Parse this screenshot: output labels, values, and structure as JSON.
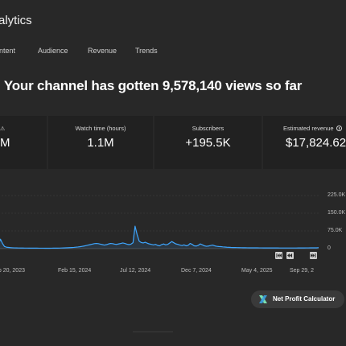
{
  "app": {
    "title": "alytics"
  },
  "tabs": [
    {
      "label": "ontent"
    },
    {
      "label": "Audience"
    },
    {
      "label": "Revenue"
    },
    {
      "label": "Trends"
    }
  ],
  "headline": "Your channel has gotten 9,578,140 views so far",
  "metrics": {
    "views": {
      "label": "",
      "value": "M",
      "icon": "warning-icon"
    },
    "watch_time": {
      "label": "Watch time (hours)",
      "value": "1.1M"
    },
    "subscribers": {
      "label": "Subscribers",
      "value": "+195.5K"
    },
    "revenue": {
      "label": "Estimated revenue",
      "value": "$17,824.62",
      "icon": "info-icon"
    }
  },
  "chart_data": {
    "type": "line",
    "y_ticks": [
      "225.0K",
      "150.0K",
      "75.0K",
      "0"
    ],
    "ylim": [
      0,
      225000
    ],
    "x_ticks": [
      "ep 20, 2023",
      "Feb 15, 2024",
      "Jul 12, 2024",
      "Dec 7, 2024",
      "May 4, 2025",
      "Sep 29, 2"
    ],
    "series": [
      {
        "color": "#3ea6ff",
        "values": [
          14000,
          40000,
          22000,
          9000,
          6000,
          5000,
          4200,
          3600,
          3200,
          3000,
          2800,
          2600,
          2500,
          2400,
          2300,
          2200,
          2100,
          2100,
          2000,
          2000,
          1900,
          1900,
          1900,
          1800,
          1800,
          1800,
          1900,
          2000,
          2100,
          2200,
          2400,
          2700,
          3000,
          3300,
          3700,
          4200,
          4800,
          5400,
          6200,
          7000,
          8000,
          9500,
          11000,
          13000,
          15000,
          17000,
          19000,
          21000,
          22000,
          21000,
          19000,
          17000,
          15000,
          17000,
          20000,
          22000,
          21000,
          19000,
          18000,
          20000,
          22000,
          24000,
          22000,
          19000,
          17000,
          19000,
          25000,
          95000,
          60000,
          32000,
          26000,
          24000,
          27000,
          23000,
          20000,
          18000,
          16000,
          18000,
          14000,
          12000,
          17000,
          20000,
          16000,
          18000,
          24000,
          30000,
          25000,
          20000,
          18000,
          15000,
          13000,
          16000,
          12000,
          14000,
          22000,
          18000,
          12000,
          11000,
          14000,
          20000,
          16000,
          12000,
          10000,
          11000,
          13000,
          15000,
          12000,
          10000,
          9000,
          8500,
          7500,
          6800,
          6000,
          5500,
          5000,
          4800,
          4600,
          4400,
          4200,
          4000,
          3800,
          3700,
          3600,
          3500,
          3400,
          3400,
          3300,
          3300,
          3200,
          3200,
          3100,
          3100,
          3000,
          3000,
          3000,
          2900,
          2900,
          2900,
          2800,
          2800,
          2800,
          2700,
          2700,
          2700,
          2700,
          2700,
          2800,
          2900,
          3000,
          3000,
          3100,
          3200,
          3200,
          3300,
          3300,
          3400,
          3500,
          4500
        ]
      }
    ],
    "grid": true
  },
  "buttons": {
    "npc_label": "Net Profit Calculator"
  },
  "colors": {
    "background": "#282828",
    "card": "#212121",
    "accent": "#3ea6ff"
  }
}
